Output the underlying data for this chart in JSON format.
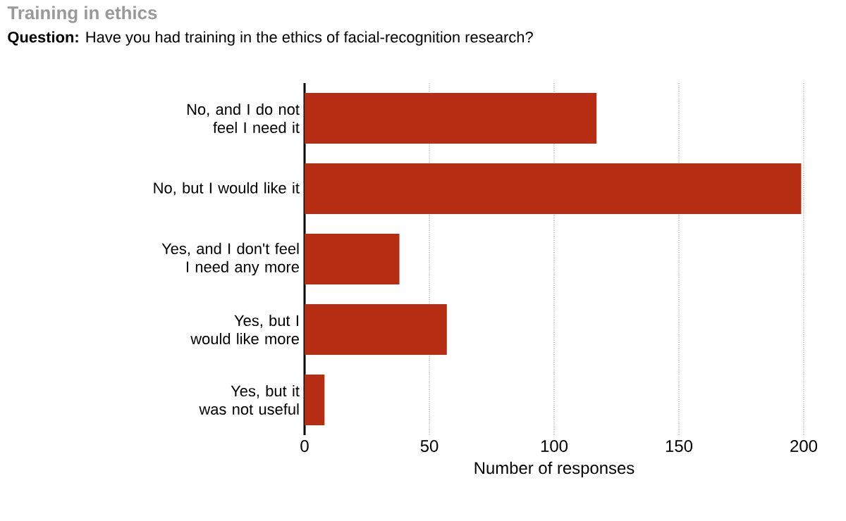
{
  "chart_data": {
    "type": "bar",
    "orientation": "horizontal",
    "title": "Training in ethics",
    "subtitle": "**Question:** Have you had training in the ethics of facial-recognition research?",
    "categories": [
      "No, and I do not feel I need it",
      "No, but I would like it",
      "Yes, and I don't feel I need any more",
      "Yes, but I would like more",
      "Yes, but it was not useful"
    ],
    "values": [
      117,
      199,
      38,
      57,
      8
    ],
    "color": "#b52d12",
    "xlabel": "Number of responses",
    "xlim": [
      0,
      200
    ],
    "xticks": [
      0,
      50,
      100,
      150,
      200
    ],
    "grid": "x"
  }
}
